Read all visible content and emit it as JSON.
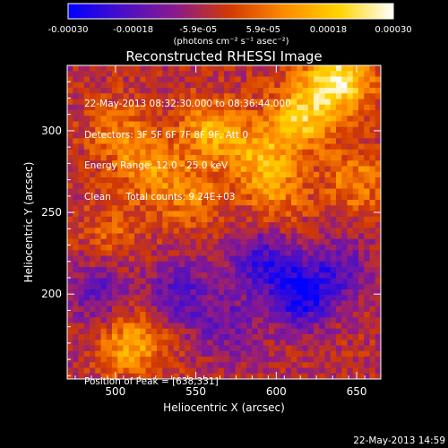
{
  "chart_data": {
    "type": "heatmap",
    "title": "Reconstructed RHESSI Image",
    "xlabel": "Heliocentric X (arcsec)",
    "ylabel": "Heliocentric Y (arcsec)",
    "xlim": [
      470,
      665
    ],
    "ylim": [
      148,
      340
    ],
    "x_ticks": [
      500,
      550,
      600,
      650
    ],
    "y_ticks": [
      200,
      250,
      300
    ],
    "colorbar": {
      "range": [
        -0.0003,
        0.0003
      ],
      "tick_labels": [
        "-0.00030",
        "-0.00018",
        "-5.9e-05",
        "5.9e-05",
        "0.00018",
        "0.00030"
      ],
      "unit_label": "(photons cm⁻² s⁻¹ asec⁻²)",
      "colors": [
        "#0000ff",
        "#4a0fc8",
        "#8b1a8b",
        "#d23a00",
        "#ff8c00",
        "#ffd400",
        "#ffffff"
      ]
    },
    "grid": false,
    "peak": {
      "x": 638,
      "y": 331
    },
    "sources": [
      {
        "x": 638,
        "y": 331,
        "amp": 0.0003
      },
      {
        "x": 615,
        "y": 308,
        "amp": 0.00022
      },
      {
        "x": 560,
        "y": 300,
        "amp": 0.00018
      },
      {
        "x": 590,
        "y": 285,
        "amp": 0.00016
      },
      {
        "x": 520,
        "y": 280,
        "amp": 0.00014
      },
      {
        "x": 650,
        "y": 270,
        "amp": 0.00013
      },
      {
        "x": 545,
        "y": 260,
        "amp": 0.00012
      },
      {
        "x": 600,
        "y": 262,
        "amp": 0.00012
      },
      {
        "x": 500,
        "y": 300,
        "amp": 0.0001
      },
      {
        "x": 510,
        "y": 170,
        "amp": 0.00018
      },
      {
        "x": 498,
        "y": 240,
        "amp": 8e-05
      },
      {
        "x": 615,
        "y": 200,
        "amp": -0.00024
      },
      {
        "x": 590,
        "y": 220,
        "amp": -0.00016
      },
      {
        "x": 540,
        "y": 200,
        "amp": -0.00014
      },
      {
        "x": 490,
        "y": 200,
        "amp": -0.00012
      },
      {
        "x": 570,
        "y": 180,
        "amp": -0.0001
      },
      {
        "x": 640,
        "y": 215,
        "amp": -0.00012
      }
    ],
    "annotations": {
      "time_range": "22-May-2013 08:32:30.000 to 08:36:44.000",
      "detectors": "Detectors: 3F 5F 6F 7F 8F 9F, Att 0",
      "energy": "Energy Range: 12.0 - 25.0 keV",
      "clean": "Clean     Total counts: 9.24E+03",
      "peak_label": "Position of Peak = [638,331]"
    }
  },
  "footer": {
    "date_stamp": "22-May-2013 14:59"
  }
}
